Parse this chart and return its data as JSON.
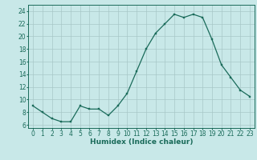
{
  "x": [
    0,
    1,
    2,
    3,
    4,
    5,
    6,
    7,
    8,
    9,
    10,
    11,
    12,
    13,
    14,
    15,
    16,
    17,
    18,
    19,
    20,
    21,
    22,
    23
  ],
  "y": [
    9,
    8,
    7,
    6.5,
    6.5,
    9,
    8.5,
    8.5,
    7.5,
    9,
    11,
    14.5,
    18,
    20.5,
    22,
    23.5,
    23,
    23.5,
    23,
    19.5,
    15.5,
    13.5,
    11.5,
    10.5
  ],
  "line_color": "#1a6b5a",
  "marker_color": "#1a6b5a",
  "bg_color": "#c8e8e8",
  "grid_color": "#a8c8c8",
  "xlabel": "Humidex (Indice chaleur)",
  "xlim": [
    -0.5,
    23.5
  ],
  "ylim": [
    5.5,
    25.0
  ],
  "yticks": [
    6,
    8,
    10,
    12,
    14,
    16,
    18,
    20,
    22,
    24
  ],
  "xticks": [
    0,
    1,
    2,
    3,
    4,
    5,
    6,
    7,
    8,
    9,
    10,
    11,
    12,
    13,
    14,
    15,
    16,
    17,
    18,
    19,
    20,
    21,
    22,
    23
  ],
  "label_fontsize": 6.5,
  "tick_fontsize": 5.5
}
